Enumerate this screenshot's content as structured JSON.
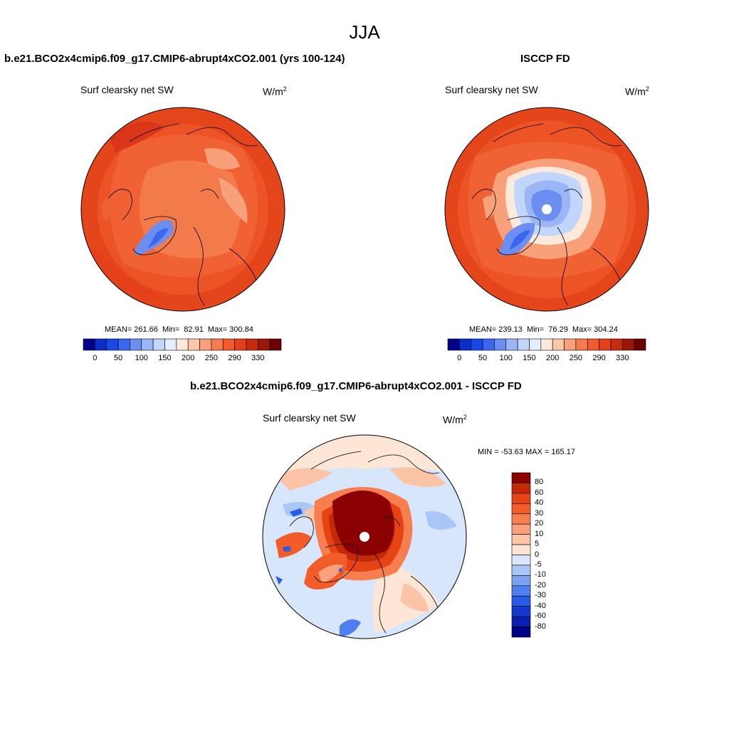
{
  "main_title": "JJA",
  "panels": {
    "model": {
      "title": "b.e21.BCO2x4cmip6.f09_g17.CMIP6-abrupt4xCO2.001 (yrs 100-124)",
      "variable": "Surf clearsky net SW",
      "units": "W/m",
      "units_sup": "2",
      "stats": "MEAN= 261.66  Min=  82.91  Max= 300.84"
    },
    "obs": {
      "title": "ISCCP FD",
      "variable": "Surf clearsky net SW",
      "units": "W/m",
      "units_sup": "2",
      "stats": "MEAN= 239.13  Min=  76.29  Max= 304.24"
    },
    "diff": {
      "title": "b.e21.BCO2x4cmip6.f09_g17.CMIP6-abrupt4xCO2.001 - ISCCP FD",
      "variable": "Surf clearsky net SW",
      "units": "W/m",
      "units_sup": "2",
      "stats": "MIN = -53.63 MAX = 165.17"
    }
  },
  "abs_colorbar": {
    "colors": [
      "#00008b",
      "#0a2ec8",
      "#1947e8",
      "#3a66f0",
      "#6b8ef0",
      "#9bb5f5",
      "#c2d5fb",
      "#e3eefd",
      "#fde9dc",
      "#fcc6a8",
      "#fba07a",
      "#f77a50",
      "#f25a2a",
      "#e6401a",
      "#c52b0e",
      "#9a1708",
      "#6b0000"
    ],
    "tick_labels": [
      "0",
      "50",
      "100",
      "150",
      "200",
      "250",
      "290",
      "330"
    ]
  },
  "diff_colorbar": {
    "colors": [
      "#8b0000",
      "#c42a08",
      "#e64415",
      "#f25c28",
      "#f77e4e",
      "#fba07c",
      "#fcc4a6",
      "#fde6d6",
      "#d8e6fb",
      "#aac6f6",
      "#7ca2f2",
      "#4f7ef0",
      "#2a5ae8",
      "#1438d0",
      "#0a1fb0",
      "#000088"
    ],
    "tick_labels": [
      "80",
      "60",
      "40",
      "30",
      "20",
      "10",
      "5",
      "0",
      "-5",
      "-10",
      "-20",
      "-30",
      "-40",
      "-60",
      "-80"
    ]
  }
}
